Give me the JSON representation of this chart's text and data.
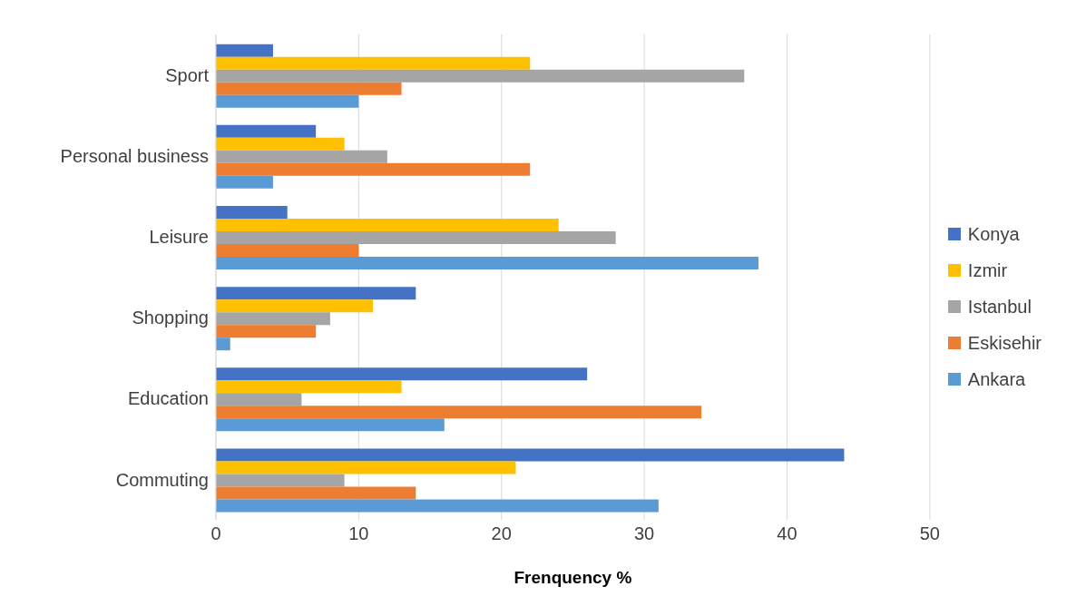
{
  "chart_data": {
    "type": "bar",
    "orientation": "horizontal",
    "xlabel": "Frenquency %",
    "categories": [
      "Sport",
      "Personal business",
      "Leisure",
      "Shopping",
      "Education",
      "Commuting"
    ],
    "series": [
      {
        "name": "Konya",
        "color": "#4472c4",
        "values": [
          4,
          7,
          5,
          14,
          26,
          44
        ]
      },
      {
        "name": "Izmir",
        "color": "#ffc000",
        "values": [
          22,
          9,
          24,
          11,
          13,
          21
        ]
      },
      {
        "name": "Istanbul",
        "color": "#a5a5a5",
        "values": [
          37,
          12,
          28,
          8,
          6,
          9
        ]
      },
      {
        "name": "Eskisehir",
        "color": "#ed7d31",
        "values": [
          13,
          22,
          10,
          7,
          34,
          14
        ]
      },
      {
        "name": "Ankara",
        "color": "#5b9bd5",
        "values": [
          10,
          4,
          38,
          1,
          16,
          31
        ]
      }
    ],
    "xlim": [
      0,
      50
    ],
    "xticks": [
      0,
      10,
      20,
      30,
      40,
      50
    ],
    "grid": "x",
    "legend": "right"
  }
}
